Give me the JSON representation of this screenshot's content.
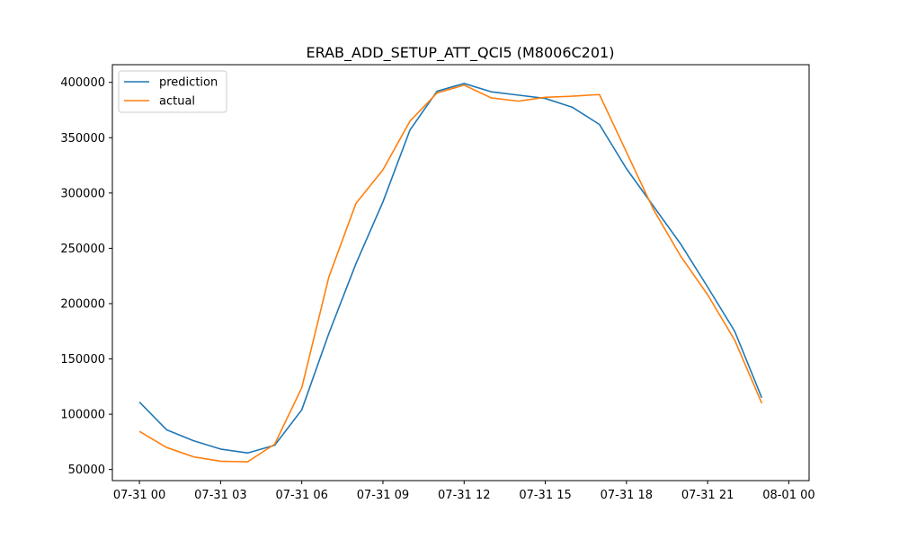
{
  "chart_data": {
    "type": "line",
    "title": "ERAB_ADD_SETUP_ATT_QCI5 (M8006C201)",
    "xlabel": "",
    "ylabel": "",
    "x": [
      "07-31 00:00",
      "07-31 01:00",
      "07-31 02:00",
      "07-31 03:00",
      "07-31 04:00",
      "07-31 05:00",
      "07-31 06:00",
      "07-31 07:00",
      "07-31 08:00",
      "07-31 09:00",
      "07-31 10:00",
      "07-31 11:00",
      "07-31 12:00",
      "07-31 13:00",
      "07-31 14:00",
      "07-31 15:00",
      "07-31 16:00",
      "07-31 17:00",
      "07-31 18:00",
      "07-31 19:00",
      "07-31 20:00",
      "07-31 21:00",
      "07-31 22:00",
      "07-31 23:00"
    ],
    "xlim": [
      "07-30 23:00",
      "08-01 00:45"
    ],
    "ylim": [
      40000,
      416000
    ],
    "x_ticks": [
      "07-31 00",
      "07-31 03",
      "07-31 06",
      "07-31 09",
      "07-31 12",
      "07-31 15",
      "07-31 18",
      "07-31 21",
      "08-01 00"
    ],
    "y_ticks": [
      50000,
      100000,
      150000,
      200000,
      250000,
      300000,
      350000,
      400000
    ],
    "grid": false,
    "legend_position": "upper-left",
    "series": [
      {
        "name": "prediction",
        "color": "#1f77b4",
        "values": [
          111000,
          86000,
          76000,
          68500,
          65000,
          72000,
          104000,
          173000,
          236000,
          292000,
          357000,
          392000,
          399000,
          391500,
          388500,
          385500,
          377500,
          362000,
          322000,
          288000,
          254000,
          215000,
          175000,
          115000
        ]
      },
      {
        "name": "actual",
        "color": "#ff7f0e",
        "values": [
          84500,
          70000,
          61500,
          57500,
          57000,
          73000,
          124000,
          224000,
          290500,
          321000,
          365000,
          390500,
          397500,
          386000,
          383000,
          386500,
          387500,
          389000,
          337000,
          285000,
          243000,
          208000,
          167000,
          110000
        ]
      }
    ]
  }
}
